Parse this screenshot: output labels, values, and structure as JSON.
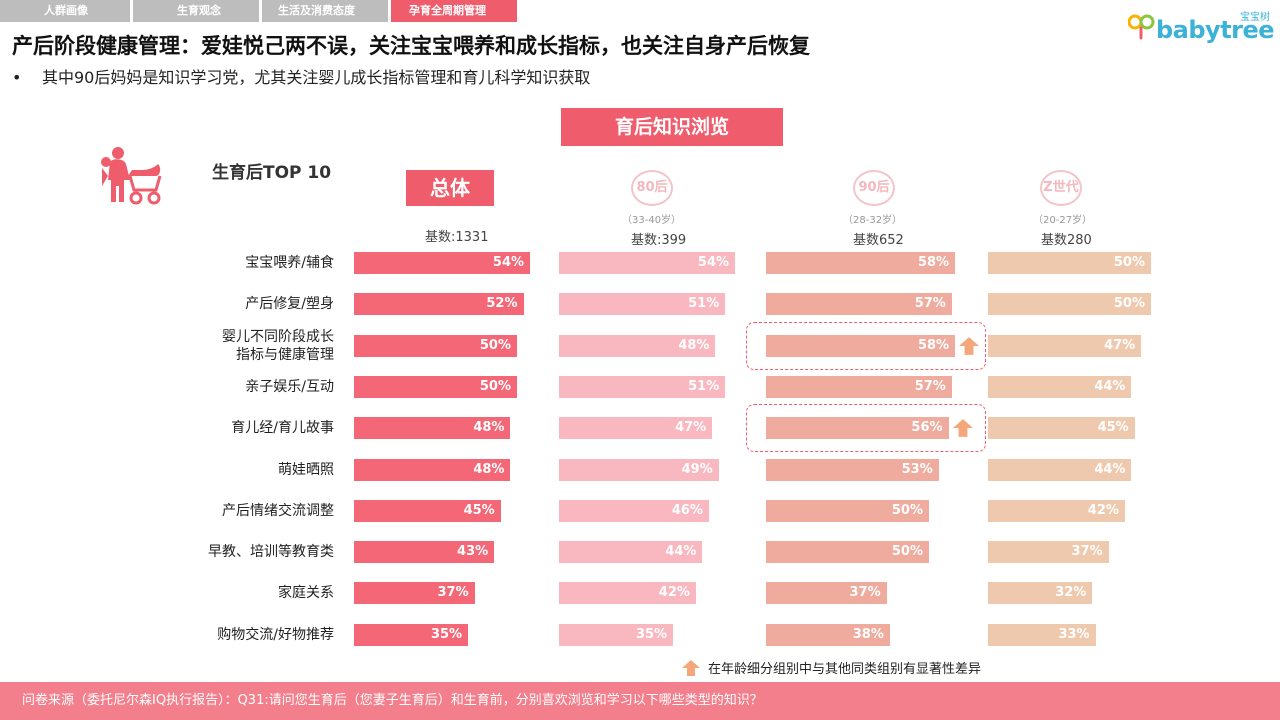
{
  "tabs": [
    {
      "label": "人群画像",
      "active": false
    },
    {
      "label": "生育观念",
      "active": false
    },
    {
      "label": "生活及消费态度",
      "active": false
    },
    {
      "label": "孕育全周期管理",
      "active": true
    }
  ],
  "logo": {
    "text": "babytree",
    "cn": "宝宝树"
  },
  "title": "产后阶段健康管理：爱娃悦己两不误，关注宝宝喂养和成长指标，也关注自身产后恢复",
  "bullet": "其中90后妈妈是知识学习党，尤其关注婴儿成长指标管理和育儿科学知识获取",
  "section_title": "育后知识浏览",
  "top10_label": "生育后TOP 10",
  "legend": {
    "text": "在年龄细分组别中与其他同类组别有显著性差异",
    "icon": "up-arrow-icon"
  },
  "footer": "问卷来源（委托尼尔森IQ执行报告）：Q31:请问您生育后（您妻子生育后）和生育前，分别喜欢浏览和学习以下哪些类型的知识？",
  "colors": {
    "accent": "#ef5d6c",
    "total": "#f46777",
    "g80": "#f9b8c0",
    "g90": "#efab9d",
    "gz": "#efc9ae",
    "arrow": "#f4a77a"
  },
  "chart_data": {
    "type": "bar",
    "orientation": "horizontal",
    "categories": [
      "宝宝喂养/辅食",
      "产后修复/塑身",
      "婴儿不同阶段成长指标与健康管理",
      "亲子娱乐/互动",
      "育儿经/育儿故事",
      "萌娃晒照",
      "产后情绪交流调整",
      "早教、培训等教育类",
      "家庭关系",
      "购物交流/好物推荐"
    ],
    "category_lines": [
      [
        "宝宝喂养/辅食"
      ],
      [
        "产后修复/塑身"
      ],
      [
        "婴儿不同阶段成长",
        "指标与健康管理"
      ],
      [
        "亲子娱乐/互动"
      ],
      [
        "育儿经/育儿故事"
      ],
      [
        "萌娃晒照"
      ],
      [
        "产后情绪交流调整"
      ],
      [
        "早教、培训等教育类"
      ],
      [
        "家庭关系"
      ],
      [
        "购物交流/好物推荐"
      ]
    ],
    "unit": "%",
    "series": [
      {
        "name": "总体",
        "age": "",
        "base": "基数:1331",
        "values": [
          54,
          52,
          50,
          50,
          48,
          48,
          45,
          43,
          37,
          35
        ],
        "significant": []
      },
      {
        "name": "80后",
        "age": "（33-40岁）",
        "base": "基数:399",
        "values": [
          54,
          51,
          48,
          51,
          47,
          49,
          46,
          44,
          42,
          35
        ],
        "significant": []
      },
      {
        "name": "90后",
        "age": "（28-32岁）",
        "base": "基数652",
        "values": [
          58,
          57,
          58,
          57,
          56,
          53,
          50,
          50,
          37,
          38
        ],
        "significant": [
          2,
          4
        ]
      },
      {
        "name": "Z世代",
        "age": "（20-27岁）",
        "base": "基数280",
        "values": [
          50,
          50,
          47,
          44,
          45,
          44,
          42,
          37,
          32,
          33
        ],
        "significant": []
      }
    ]
  }
}
